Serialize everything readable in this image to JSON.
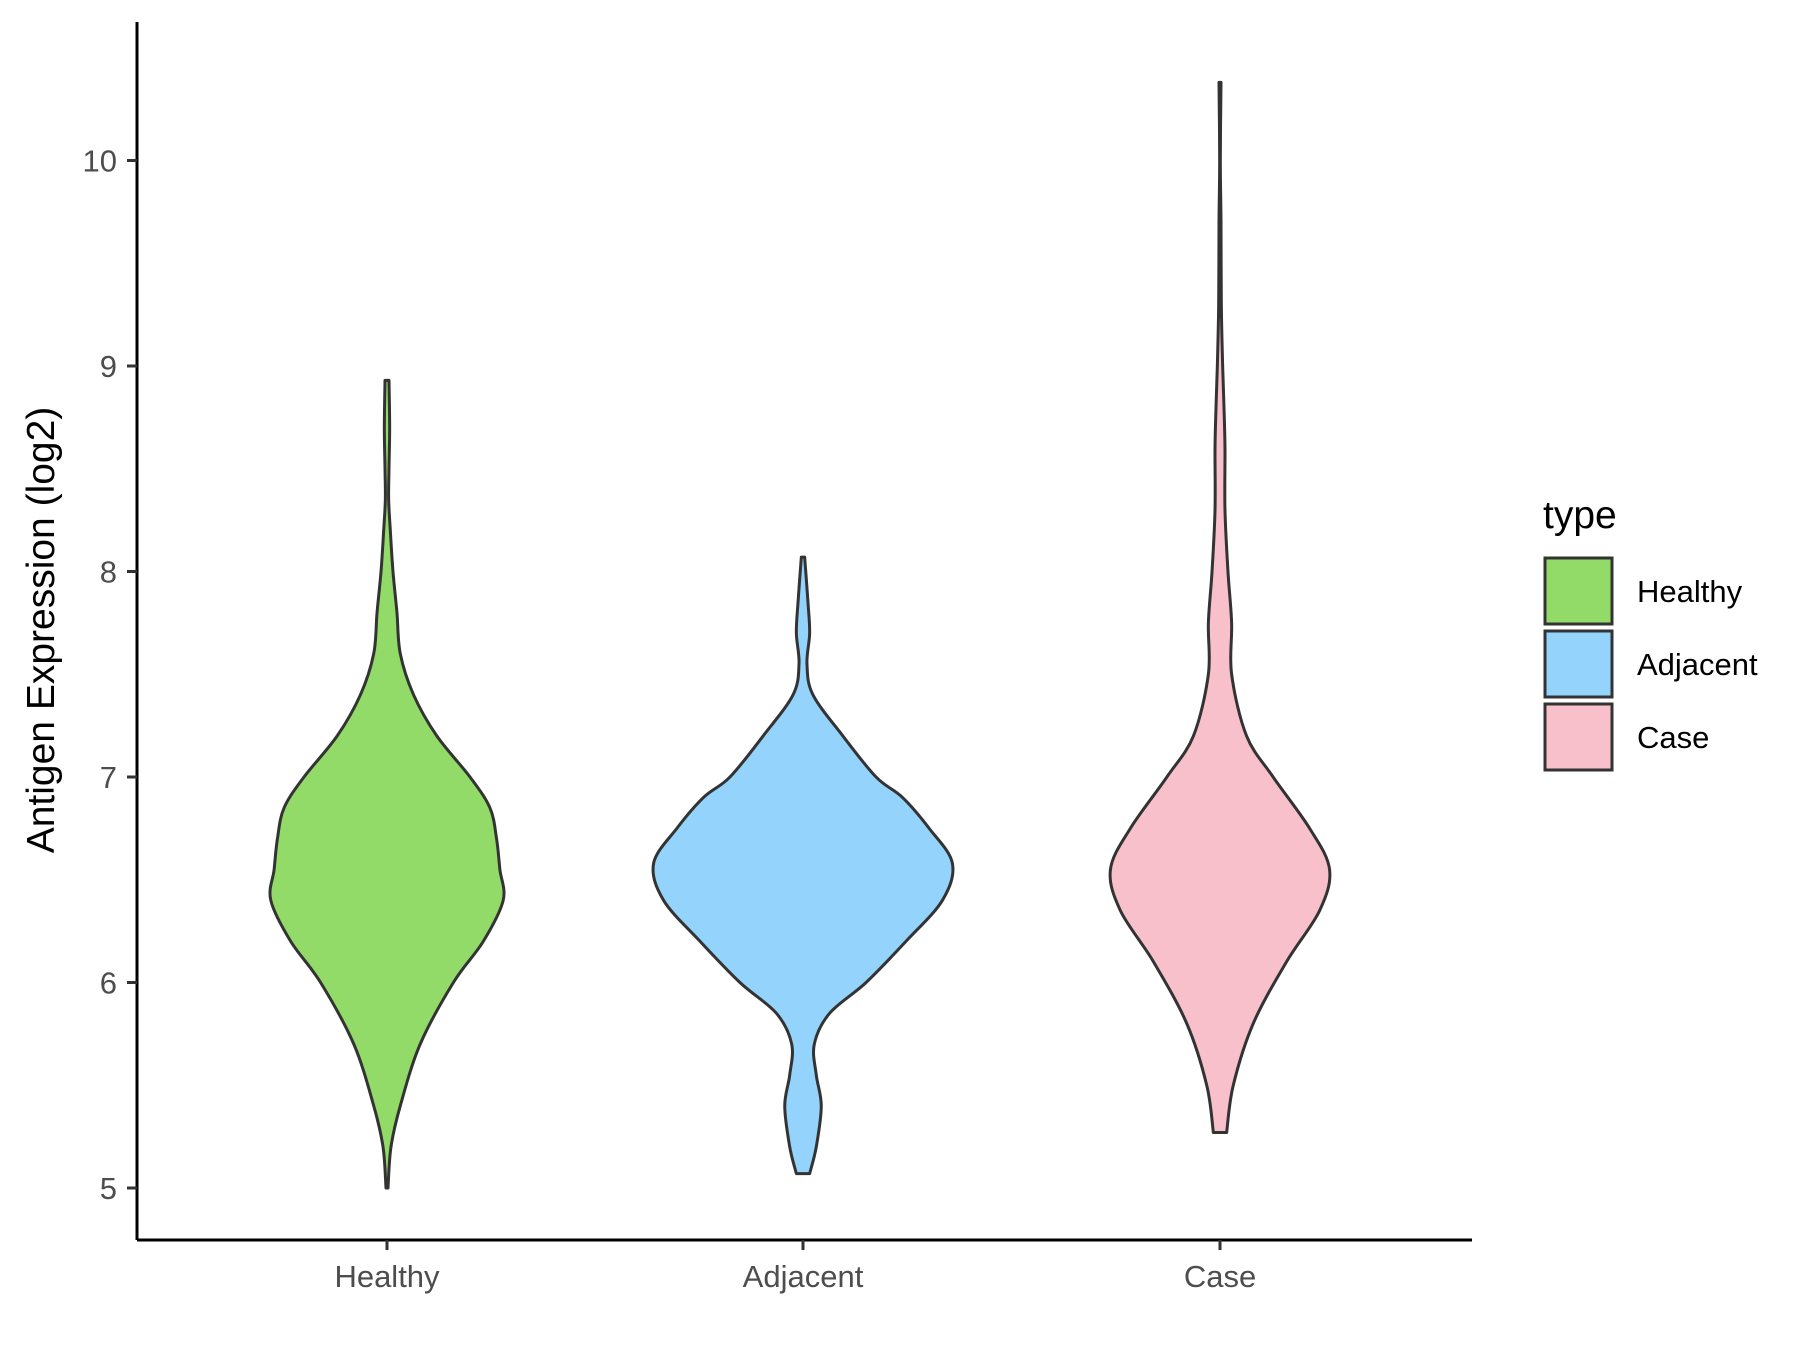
{
  "chart_data": {
    "type": "violin",
    "ylabel": "Antigen Expression (log2)",
    "xlabel": "",
    "categories": [
      "Healthy",
      "Adjacent",
      "Case"
    ],
    "yticks": [
      5,
      6,
      7,
      8,
      9,
      10
    ],
    "ylim": [
      4.75,
      10.65
    ],
    "grid": false,
    "legend": {
      "title": "type",
      "placement": "right",
      "entries": [
        "Healthy",
        "Adjacent",
        "Case"
      ]
    },
    "colors": {
      "Healthy": "#93db69",
      "Adjacent": "#93d3fc",
      "Case": "#f7c0cb",
      "outline": "#333333"
    },
    "series": [
      {
        "name": "Healthy",
        "min": 5.0,
        "max": 8.93,
        "density": [
          [
            5.0,
            0.003
          ],
          [
            5.2,
            0.012
          ],
          [
            5.4,
            0.04
          ],
          [
            5.7,
            0.1
          ],
          [
            6.0,
            0.2
          ],
          [
            6.2,
            0.29
          ],
          [
            6.4,
            0.35
          ],
          [
            6.55,
            0.34
          ],
          [
            6.7,
            0.33
          ],
          [
            6.85,
            0.31
          ],
          [
            7.0,
            0.25
          ],
          [
            7.2,
            0.15
          ],
          [
            7.4,
            0.08
          ],
          [
            7.6,
            0.04
          ],
          [
            7.8,
            0.03
          ],
          [
            8.0,
            0.018
          ],
          [
            8.2,
            0.01
          ],
          [
            8.35,
            0.005
          ],
          [
            8.5,
            0.006
          ],
          [
            8.7,
            0.008
          ],
          [
            8.93,
            0.006
          ]
        ]
      },
      {
        "name": "Adjacent",
        "min": 5.07,
        "max": 8.07,
        "density": [
          [
            5.07,
            0.02
          ],
          [
            5.2,
            0.04
          ],
          [
            5.4,
            0.055
          ],
          [
            5.55,
            0.04
          ],
          [
            5.7,
            0.034
          ],
          [
            5.85,
            0.08
          ],
          [
            6.0,
            0.19
          ],
          [
            6.2,
            0.31
          ],
          [
            6.4,
            0.42
          ],
          [
            6.58,
            0.45
          ],
          [
            6.75,
            0.38
          ],
          [
            6.9,
            0.3
          ],
          [
            7.0,
            0.22
          ],
          [
            7.2,
            0.12
          ],
          [
            7.4,
            0.03
          ],
          [
            7.55,
            0.012
          ],
          [
            7.7,
            0.02
          ],
          [
            7.85,
            0.015
          ],
          [
            8.07,
            0.005
          ]
        ]
      },
      {
        "name": "Case",
        "min": 5.27,
        "max": 10.38,
        "density": [
          [
            5.27,
            0.02
          ],
          [
            5.5,
            0.04
          ],
          [
            5.8,
            0.1
          ],
          [
            6.1,
            0.2
          ],
          [
            6.35,
            0.3
          ],
          [
            6.55,
            0.33
          ],
          [
            6.75,
            0.27
          ],
          [
            7.0,
            0.16
          ],
          [
            7.2,
            0.08
          ],
          [
            7.5,
            0.035
          ],
          [
            7.75,
            0.035
          ],
          [
            8.0,
            0.024
          ],
          [
            8.3,
            0.015
          ],
          [
            8.6,
            0.015
          ],
          [
            8.8,
            0.012
          ],
          [
            9.0,
            0.008
          ],
          [
            9.3,
            0.004
          ],
          [
            9.7,
            0.003
          ],
          [
            10.0,
            0.001
          ],
          [
            10.38,
            0.003
          ]
        ]
      }
    ]
  }
}
